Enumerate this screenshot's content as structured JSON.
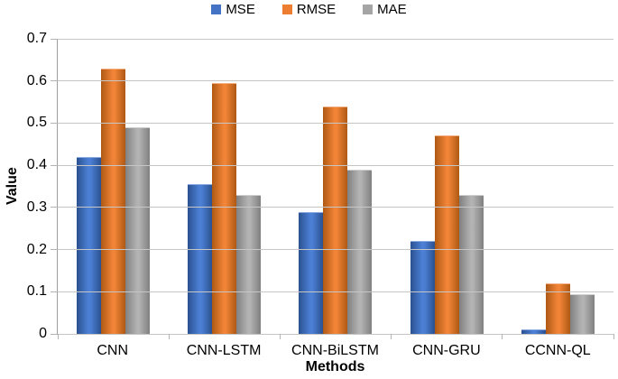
{
  "legend": {
    "items": [
      {
        "id": "mse",
        "label": "MSE",
        "color": "#4472C4"
      },
      {
        "id": "rmse",
        "label": "RMSE",
        "color": "#ED7D31"
      },
      {
        "id": "mae",
        "label": "MAE",
        "color": "#A5A5A5"
      }
    ]
  },
  "axes": {
    "ylabel": "Value",
    "xlabel": "Methods"
  },
  "chart_data": {
    "type": "bar",
    "categories": [
      "CNN",
      "CNN-LSTM",
      "CNN-BiLSTM",
      "CNN-GRU",
      "CCNN-QL"
    ],
    "series": [
      {
        "name": "MSE",
        "color": "#4472C4",
        "edge_color": "#2A5190",
        "center_color": "#4C80D5",
        "top_edge": "#8AAAE1",
        "values": [
          0.42,
          0.355,
          0.29,
          0.22,
          0.01
        ]
      },
      {
        "name": "RMSE",
        "color": "#ED7D31",
        "edge_color": "#AE5914",
        "center_color": "#F18437",
        "top_edge": "#F4B183",
        "values": [
          0.63,
          0.595,
          0.54,
          0.47,
          0.12
        ]
      },
      {
        "name": "MAE",
        "color": "#A5A5A5",
        "edge_color": "#808080",
        "center_color": "#B3B3B3",
        "top_edge": "#D0D0D0",
        "values": [
          0.49,
          0.33,
          0.39,
          0.33,
          0.095
        ]
      }
    ],
    "title": "",
    "xlabel": "Methods",
    "ylabel": "Value",
    "ylim": [
      0,
      0.7
    ],
    "ytick_step": 0.1,
    "ytick_labels": [
      "0.7",
      "0.6",
      "0.5",
      "0.4",
      "0.3",
      "0.2",
      "0.1",
      "0"
    ],
    "grid": "horizontal",
    "legend_position": "top-center"
  },
  "colors": {
    "background": "#FFFFFF",
    "gridline": "#C6C6C6",
    "axis_line": "#9D9D9D",
    "tick": "#B3B3B3",
    "text": "#000000"
  }
}
